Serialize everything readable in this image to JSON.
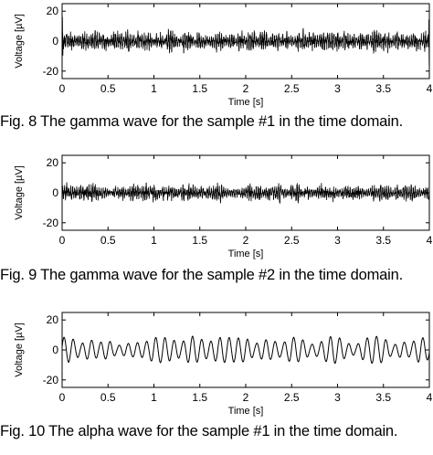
{
  "figures": [
    {
      "caption": "Fig. 8 The gamma wave for the sample #1 in the time domain."
    },
    {
      "caption": "Fig. 9 The gamma wave for the sample #2 in the time domain."
    },
    {
      "caption": "Fig. 10 The alpha wave for the sample #1 in the time domain."
    }
  ],
  "chart_data": [
    {
      "type": "line",
      "xlabel": "Time [s]",
      "ylabel": "Voltage [µV]",
      "xlim": [
        0,
        4
      ],
      "ylim": [
        -25,
        25
      ],
      "xticks": [
        "0",
        "0.5",
        "1",
        "1.5",
        "2",
        "2.5",
        "3",
        "3.5",
        "4"
      ],
      "yticks": [
        "20",
        "0",
        "-20"
      ],
      "grid": false,
      "signal": {
        "kind": "gamma",
        "freq_hz": 45,
        "amplitude_uv": 6,
        "peak_uv": 16
      }
    },
    {
      "type": "line",
      "xlabel": "Time [s]",
      "ylabel": "Voltage [µV]",
      "xlim": [
        0,
        4
      ],
      "ylim": [
        -25,
        25
      ],
      "xticks": [
        "0",
        "0.5",
        "1",
        "1.5",
        "2",
        "2.5",
        "3",
        "3.5",
        "4"
      ],
      "yticks": [
        "20",
        "0",
        "-20"
      ],
      "grid": false,
      "signal": {
        "kind": "gamma",
        "freq_hz": 45,
        "amplitude_uv": 5,
        "peak_uv": 9
      }
    },
    {
      "type": "line",
      "xlabel": "Time [s]",
      "ylabel": "Voltage [µV]",
      "xlim": [
        0,
        4
      ],
      "ylim": [
        -25,
        25
      ],
      "xticks": [
        "0",
        "0.5",
        "1",
        "1.5",
        "2",
        "2.5",
        "3",
        "3.5",
        "4"
      ],
      "yticks": [
        "20",
        "0",
        "-20"
      ],
      "grid": false,
      "signal": {
        "kind": "alpha",
        "freq_hz": 10,
        "amplitude_uv": 8,
        "peak_uv": 14
      }
    }
  ]
}
